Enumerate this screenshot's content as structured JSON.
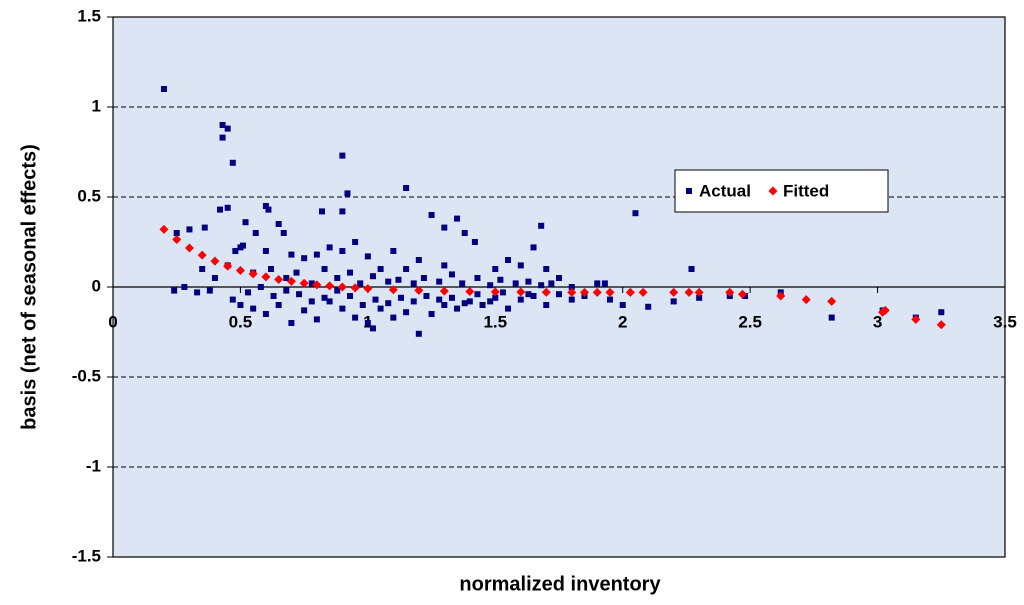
{
  "chart_data": {
    "type": "scatter",
    "x_label": "normalized inventory",
    "y_label": "basis (net of seasonal effects)",
    "xlim": [
      0,
      3.5
    ],
    "xticks": [
      0,
      0.5,
      1,
      1.5,
      2,
      2.5,
      3,
      3.5
    ],
    "ylim": [
      -1.5,
      1.5
    ],
    "yticks": [
      -1.5,
      -1,
      -0.5,
      0,
      0.5,
      1,
      1.5
    ],
    "grid": true,
    "legend": "center-right",
    "series": [
      {
        "name": "Actual",
        "color": "#000080",
        "marker": "square",
        "x": [
          0.2,
          0.43,
          0.45,
          0.43,
          0.47,
          0.9,
          0.92,
          1.15,
          0.42,
          0.45,
          0.6,
          0.61,
          0.9,
          0.82,
          2.05,
          1.25,
          1.35,
          1.3,
          1.68,
          0.36,
          0.3,
          0.25,
          0.52,
          0.56,
          0.65,
          0.67,
          0.48,
          0.5,
          0.51,
          0.6,
          0.7,
          0.75,
          0.8,
          0.85,
          0.9,
          0.95,
          1.0,
          1.05,
          1.1,
          1.15,
          1.2,
          1.3,
          1.38,
          1.42,
          1.5,
          1.55,
          1.6,
          1.65,
          1.7,
          1.75,
          1.8,
          1.9,
          1.93,
          2.27,
          2.62,
          2.82,
          3.25,
          3.15,
          3.02,
          2.48,
          2.42,
          2.3,
          2.2,
          2.1,
          2.0,
          1.95,
          0.28,
          0.24,
          0.33,
          0.38,
          0.47,
          0.5,
          0.55,
          0.6,
          0.65,
          0.7,
          0.75,
          0.8,
          0.85,
          0.9,
          0.95,
          1.0,
          1.02,
          1.05,
          1.1,
          1.15,
          1.2,
          1.25,
          1.3,
          1.35,
          1.4,
          1.45,
          1.5,
          1.55,
          1.6,
          1.65,
          1.7,
          1.75,
          1.8,
          1.85,
          0.35,
          0.4,
          0.45,
          0.55,
          0.62,
          0.68,
          0.72,
          0.78,
          0.83,
          0.88,
          0.93,
          0.97,
          1.02,
          1.08,
          1.12,
          1.18,
          1.22,
          1.28,
          1.33,
          1.37,
          1.43,
          1.48,
          1.52,
          1.58,
          1.63,
          1.68,
          1.72,
          0.53,
          0.63,
          0.73,
          0.83,
          0.93,
          1.03,
          1.13,
          1.23,
          1.33,
          1.43,
          1.53,
          1.63,
          0.58,
          0.68,
          0.78,
          0.88,
          0.98,
          1.08,
          1.18,
          1.28,
          1.38,
          1.48
        ],
        "values": [
          1.1,
          0.9,
          0.88,
          0.83,
          0.69,
          0.73,
          0.52,
          0.55,
          0.43,
          0.44,
          0.45,
          0.43,
          0.42,
          0.42,
          0.41,
          0.4,
          0.38,
          0.33,
          0.34,
          0.33,
          0.32,
          0.3,
          0.36,
          0.3,
          0.35,
          0.3,
          0.2,
          0.22,
          0.23,
          0.2,
          0.18,
          0.16,
          0.18,
          0.22,
          0.2,
          0.25,
          0.17,
          0.1,
          0.2,
          0.1,
          0.15,
          0.12,
          0.3,
          0.25,
          0.1,
          0.15,
          0.12,
          0.22,
          0.1,
          0.05,
          0.0,
          0.02,
          0.02,
          0.1,
          -0.03,
          -0.17,
          -0.14,
          -0.17,
          -0.13,
          -0.05,
          -0.05,
          -0.06,
          -0.08,
          -0.11,
          -0.1,
          -0.07,
          0.0,
          -0.02,
          -0.03,
          -0.02,
          -0.07,
          -0.1,
          -0.12,
          -0.15,
          -0.1,
          -0.2,
          -0.13,
          -0.18,
          -0.08,
          -0.12,
          -0.17,
          -0.2,
          -0.23,
          -0.12,
          -0.17,
          -0.14,
          -0.26,
          -0.15,
          -0.1,
          -0.12,
          -0.08,
          -0.1,
          -0.06,
          -0.12,
          -0.07,
          -0.05,
          -0.1,
          -0.04,
          -0.07,
          -0.05,
          0.1,
          0.05,
          0.12,
          0.08,
          0.1,
          0.05,
          0.08,
          0.02,
          0.1,
          0.05,
          0.08,
          0.02,
          0.06,
          0.03,
          0.04,
          0.02,
          0.05,
          0.03,
          0.07,
          0.02,
          0.05,
          0.01,
          0.04,
          0.02,
          0.03,
          0.01,
          0.02,
          -0.03,
          -0.05,
          -0.04,
          -0.06,
          -0.05,
          -0.07,
          -0.06,
          -0.05,
          -0.06,
          -0.04,
          -0.03,
          -0.04,
          0.0,
          -0.02,
          -0.08,
          -0.02,
          -0.1,
          -0.09,
          -0.08,
          -0.07,
          -0.09,
          -0.08
        ]
      },
      {
        "name": "Fitted",
        "color": "#ff0000",
        "marker": "diamond",
        "x": [
          0.2,
          0.25,
          0.3,
          0.35,
          0.4,
          0.45,
          0.5,
          0.55,
          0.6,
          0.65,
          0.7,
          0.75,
          0.8,
          0.85,
          0.9,
          0.95,
          1.0,
          1.1,
          1.2,
          1.3,
          1.4,
          1.5,
          1.6,
          1.7,
          1.8,
          1.85,
          1.9,
          1.95,
          2.03,
          2.08,
          2.2,
          2.26,
          2.3,
          2.42,
          2.47,
          2.62,
          2.72,
          2.82,
          3.02,
          3.03,
          3.15,
          3.25
        ],
        "values": [
          0.32,
          0.264,
          0.217,
          0.177,
          0.144,
          0.116,
          0.092,
          0.073,
          0.056,
          0.042,
          0.031,
          0.021,
          0.012,
          0.006,
          0.0,
          -0.005,
          -0.009,
          -0.015,
          -0.019,
          -0.023,
          -0.025,
          -0.027,
          -0.028,
          -0.029,
          -0.03,
          -0.03,
          -0.03,
          -0.03,
          -0.03,
          -0.03,
          -0.03,
          -0.03,
          -0.03,
          -0.03,
          -0.04,
          -0.05,
          -0.07,
          -0.08,
          -0.14,
          -0.13,
          -0.18,
          -0.21
        ]
      }
    ]
  }
}
